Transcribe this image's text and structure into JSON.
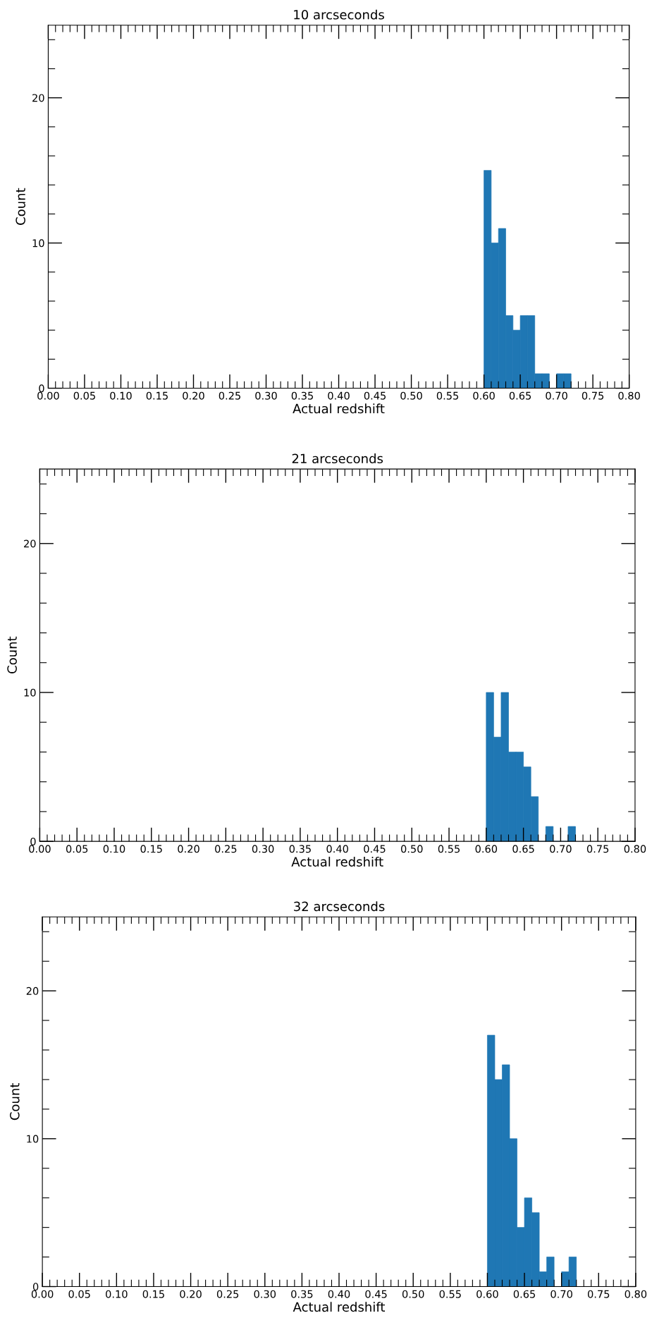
{
  "chart_data": [
    {
      "type": "histogram",
      "title": "10 arcseconds",
      "xlabel": "Actual redshift",
      "ylabel": "Count",
      "color": "#1f77b4",
      "bins": [
        0.6,
        0.61,
        0.62,
        0.63,
        0.64,
        0.65,
        0.66,
        0.67,
        0.68,
        0.69,
        0.7,
        0.71,
        0.72
      ],
      "values": [
        15,
        10,
        11,
        5,
        4,
        5,
        5,
        1,
        1,
        0,
        1,
        1
      ],
      "xlim": [
        0,
        0.8
      ],
      "ylim": [
        0,
        25
      ],
      "yticks": [
        0,
        10,
        20
      ],
      "xticks": [
        {
          "value": 0.0,
          "label": "0.00"
        },
        {
          "value": 0.05,
          "label": "0.05"
        },
        {
          "value": 0.1,
          "label": "0.10"
        },
        {
          "value": 0.15,
          "label": "0.15"
        },
        {
          "value": 0.2,
          "label": "0.20"
        },
        {
          "value": 0.25,
          "label": "0.25"
        },
        {
          "value": 0.3,
          "label": "0.30"
        },
        {
          "value": 0.35,
          "label": "0.35"
        },
        {
          "value": 0.4,
          "label": "0.40"
        },
        {
          "value": 0.45,
          "label": "0.45"
        },
        {
          "value": 0.5,
          "label": "0.50"
        },
        {
          "value": 0.55,
          "label": "0.55"
        },
        {
          "value": 0.6,
          "label": "0.60"
        },
        {
          "value": 0.65,
          "label": "0.65"
        },
        {
          "value": 0.7,
          "label": "0.70"
        },
        {
          "value": 0.75,
          "label": "0.75"
        },
        {
          "value": 0.8,
          "label": "0.80"
        }
      ]
    },
    {
      "type": "histogram",
      "title": "21 arcseconds",
      "xlabel": "Actual redshift",
      "ylabel": "Count",
      "color": "#1f77b4",
      "bins": [
        0.6,
        0.61,
        0.62,
        0.63,
        0.64,
        0.65,
        0.66,
        0.67,
        0.68,
        0.69,
        0.7,
        0.71,
        0.72
      ],
      "values": [
        10,
        7,
        10,
        6,
        6,
        5,
        3,
        0,
        1,
        0,
        0,
        1
      ],
      "xlim": [
        0,
        0.8
      ],
      "ylim": [
        0,
        25
      ],
      "yticks": [
        0,
        10,
        20
      ],
      "xticks": [
        {
          "value": 0.0,
          "label": "0.00"
        },
        {
          "value": 0.05,
          "label": "0.05"
        },
        {
          "value": 0.1,
          "label": "0.10"
        },
        {
          "value": 0.15,
          "label": "0.15"
        },
        {
          "value": 0.2,
          "label": "0.20"
        },
        {
          "value": 0.25,
          "label": "0.25"
        },
        {
          "value": 0.3,
          "label": "0.30"
        },
        {
          "value": 0.35,
          "label": "0.35"
        },
        {
          "value": 0.4,
          "label": "0.40"
        },
        {
          "value": 0.45,
          "label": "0.45"
        },
        {
          "value": 0.5,
          "label": "0.50"
        },
        {
          "value": 0.55,
          "label": "0.55"
        },
        {
          "value": 0.6,
          "label": "0.60"
        },
        {
          "value": 0.65,
          "label": "0.65"
        },
        {
          "value": 0.7,
          "label": "0.70"
        },
        {
          "value": 0.75,
          "label": "0.75"
        },
        {
          "value": 0.8,
          "label": "0.80"
        }
      ]
    },
    {
      "type": "histogram",
      "title": "32 arcseconds",
      "xlabel": "Actual redshift",
      "ylabel": "Count",
      "color": "#1f77b4",
      "bins": [
        0.6,
        0.61,
        0.62,
        0.63,
        0.64,
        0.65,
        0.66,
        0.67,
        0.68,
        0.69,
        0.7,
        0.71,
        0.72
      ],
      "values": [
        17,
        14,
        15,
        10,
        4,
        6,
        5,
        1,
        2,
        0,
        1,
        2
      ],
      "xlim": [
        0,
        0.8
      ],
      "ylim": [
        0,
        25
      ],
      "yticks": [
        0,
        10,
        20
      ],
      "xticks": [
        {
          "value": 0.0,
          "label": "0.00"
        },
        {
          "value": 0.05,
          "label": "0.05"
        },
        {
          "value": 0.1,
          "label": "0.10"
        },
        {
          "value": 0.15,
          "label": "0.15"
        },
        {
          "value": 0.2,
          "label": "0.20"
        },
        {
          "value": 0.25,
          "label": "0.25"
        },
        {
          "value": 0.3,
          "label": "0.30"
        },
        {
          "value": 0.35,
          "label": "0.35"
        },
        {
          "value": 0.4,
          "label": "0.40"
        },
        {
          "value": 0.45,
          "label": "0.45"
        },
        {
          "value": 0.5,
          "label": "0.50"
        },
        {
          "value": 0.55,
          "label": "0.55"
        },
        {
          "value": 0.6,
          "label": "0.60"
        },
        {
          "value": 0.65,
          "label": "0.65"
        },
        {
          "value": 0.7,
          "label": "0.70"
        },
        {
          "value": 0.75,
          "label": "0.75"
        },
        {
          "value": 0.8,
          "label": "0.80"
        }
      ]
    }
  ]
}
